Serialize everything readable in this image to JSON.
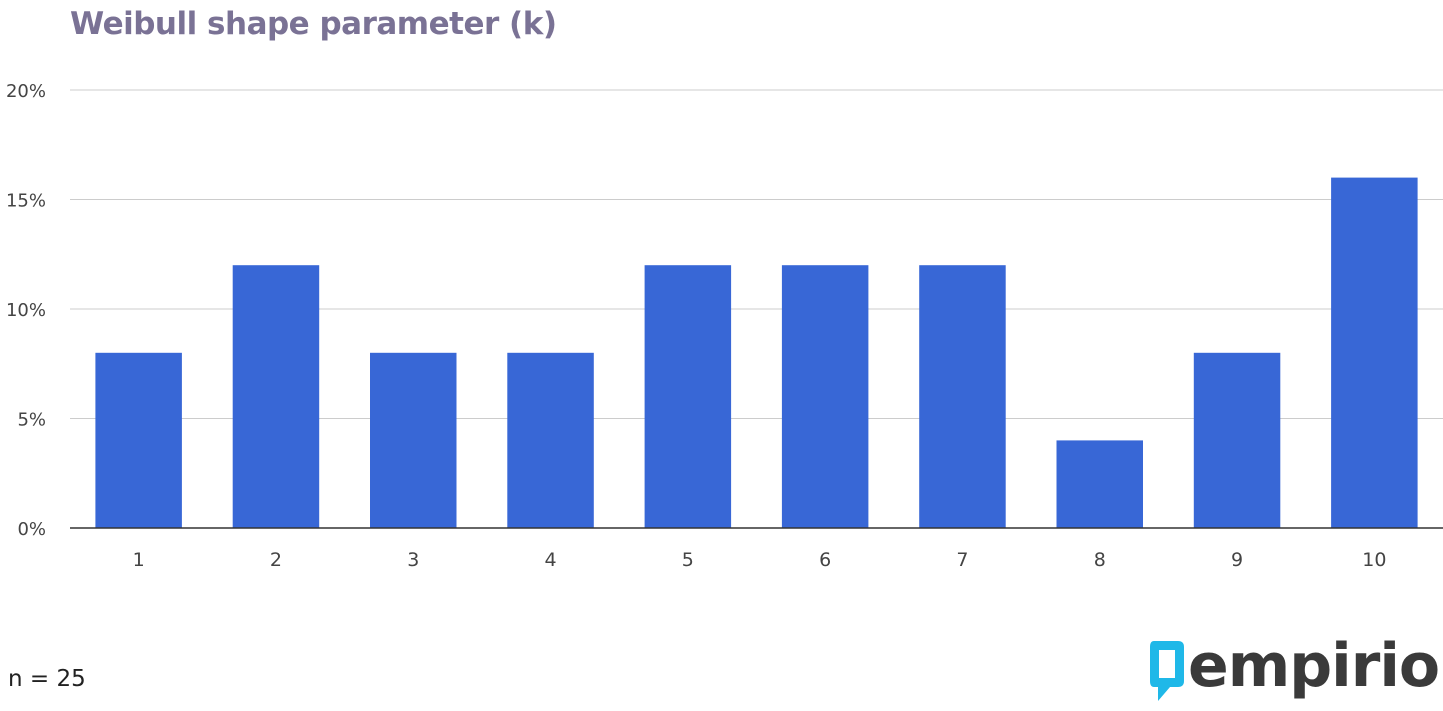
{
  "chart_data": {
    "type": "bar",
    "title": "Weibull shape parameter (k)",
    "categories": [
      "1",
      "2",
      "3",
      "4",
      "5",
      "6",
      "7",
      "8",
      "9",
      "10"
    ],
    "values": [
      8,
      12,
      8,
      8,
      12,
      12,
      12,
      4,
      8,
      16
    ],
    "unit": "%",
    "y_ticks": [
      "0%",
      "5%",
      "10%",
      "15%",
      "20%"
    ],
    "ylim": [
      0,
      20
    ],
    "grid": true,
    "bar_color": "#3867d6"
  },
  "footnote": "n = 25",
  "logo": {
    "text": "empirio",
    "icon": "speech-bubble-logo-icon",
    "icon_color": "#1fb8e8"
  }
}
